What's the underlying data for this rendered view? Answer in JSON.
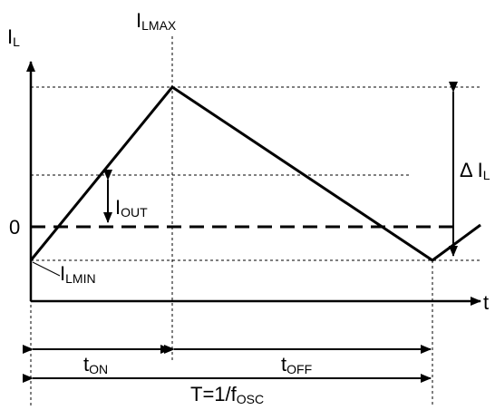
{
  "labels": {
    "y_axis": {
      "main": "I",
      "sub": "L"
    },
    "x_axis": "t",
    "zero": "0",
    "ilmax": {
      "main": "I",
      "sub": "LMAX"
    },
    "ilmin": {
      "main": "I",
      "sub": "LMIN"
    },
    "iout": {
      "main": "I",
      "sub": "OUT"
    },
    "delta_il": {
      "main": "Δ I",
      "sub": "L"
    },
    "t_on": {
      "main": "t",
      "sub": "ON"
    },
    "t_off": {
      "main": "t",
      "sub": "OFF"
    },
    "period": {
      "main": "T=1/f",
      "sub": "OSC"
    }
  }
}
